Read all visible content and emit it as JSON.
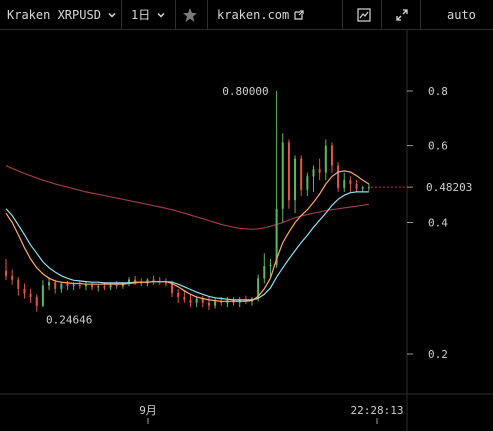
{
  "toolbar": {
    "symbol": "Kraken XRPUSD",
    "interval": "1日",
    "site": "kraken.com",
    "scale_mode": "auto",
    "icons": [
      "chevron-down-icon",
      "chevron-down-icon",
      "star-icon",
      "external-link-icon",
      "chart-type-icon",
      "fullscreen-icon"
    ]
  },
  "colors": {
    "up": "#5fb860",
    "down": "#e0584a",
    "ma_fast": "#ffa863",
    "ma_mid": "#8fe0f0",
    "ma_slow": "#9c3b4a",
    "text": "#cfcfcf",
    "price_line": "#c23a3a"
  },
  "chart_data": {
    "type": "candlestick",
    "y_scale": "log",
    "y_ticks": [
      "0.8",
      "0.6",
      "0.4",
      "0.2"
    ],
    "y_tick_values": [
      0.8,
      0.6,
      0.4,
      0.2
    ],
    "x_ticks": [
      "9月"
    ],
    "time_label": "22:28:13",
    "last_price": "0.48203",
    "high_label": "0.80000",
    "low_label": "0.24646",
    "candles": [
      [
        0.31,
        0.33,
        0.295,
        0.302
      ],
      [
        0.302,
        0.312,
        0.288,
        0.296
      ],
      [
        0.296,
        0.3,
        0.272,
        0.282
      ],
      [
        0.282,
        0.29,
        0.268,
        0.275
      ],
      [
        0.275,
        0.282,
        0.262,
        0.27
      ],
      [
        0.27,
        0.274,
        0.25,
        0.258
      ],
      [
        0.258,
        0.295,
        0.256,
        0.287
      ],
      [
        0.287,
        0.3,
        0.28,
        0.292
      ],
      [
        0.292,
        0.296,
        0.275,
        0.282
      ],
      [
        0.282,
        0.292,
        0.276,
        0.29
      ],
      [
        0.29,
        0.294,
        0.28,
        0.286
      ],
      [
        0.286,
        0.292,
        0.28,
        0.288
      ],
      [
        0.288,
        0.294,
        0.282,
        0.286
      ],
      [
        0.286,
        0.292,
        0.28,
        0.288
      ],
      [
        0.288,
        0.292,
        0.28,
        0.284
      ],
      [
        0.284,
        0.288,
        0.278,
        0.286
      ],
      [
        0.286,
        0.292,
        0.28,
        0.284
      ],
      [
        0.284,
        0.29,
        0.28,
        0.288
      ],
      [
        0.288,
        0.294,
        0.282,
        0.286
      ],
      [
        0.286,
        0.292,
        0.282,
        0.29
      ],
      [
        0.29,
        0.3,
        0.286,
        0.296
      ],
      [
        0.296,
        0.302,
        0.288,
        0.292
      ],
      [
        0.292,
        0.298,
        0.286,
        0.29
      ],
      [
        0.29,
        0.298,
        0.286,
        0.296
      ],
      [
        0.296,
        0.302,
        0.288,
        0.294
      ],
      [
        0.294,
        0.3,
        0.288,
        0.292
      ],
      [
        0.292,
        0.298,
        0.286,
        0.29
      ],
      [
        0.29,
        0.294,
        0.27,
        0.276
      ],
      [
        0.276,
        0.282,
        0.262,
        0.27
      ],
      [
        0.27,
        0.28,
        0.262,
        0.266
      ],
      [
        0.266,
        0.274,
        0.256,
        0.262
      ],
      [
        0.262,
        0.272,
        0.256,
        0.268
      ],
      [
        0.268,
        0.272,
        0.256,
        0.262
      ],
      [
        0.262,
        0.27,
        0.252,
        0.258
      ],
      [
        0.258,
        0.268,
        0.254,
        0.264
      ],
      [
        0.264,
        0.27,
        0.258,
        0.262
      ],
      [
        0.262,
        0.27,
        0.256,
        0.266
      ],
      [
        0.266,
        0.27,
        0.258,
        0.262
      ],
      [
        0.262,
        0.27,
        0.256,
        0.266
      ],
      [
        0.266,
        0.272,
        0.26,
        0.264
      ],
      [
        0.264,
        0.27,
        0.258,
        0.268
      ],
      [
        0.268,
        0.304,
        0.264,
        0.298
      ],
      [
        0.298,
        0.34,
        0.29,
        0.318
      ],
      [
        0.318,
        0.33,
        0.3,
        0.32
      ],
      [
        0.32,
        0.8,
        0.315,
        0.43
      ],
      [
        0.43,
        0.64,
        0.4,
        0.61
      ],
      [
        0.61,
        0.62,
        0.43,
        0.45
      ],
      [
        0.45,
        0.57,
        0.42,
        0.56
      ],
      [
        0.56,
        0.57,
        0.46,
        0.475
      ],
      [
        0.475,
        0.52,
        0.46,
        0.51
      ],
      [
        0.51,
        0.54,
        0.47,
        0.53
      ],
      [
        0.53,
        0.56,
        0.5,
        0.52
      ],
      [
        0.52,
        0.62,
        0.5,
        0.6
      ],
      [
        0.6,
        0.61,
        0.52,
        0.54
      ],
      [
        0.54,
        0.55,
        0.47,
        0.48
      ],
      [
        0.48,
        0.52,
        0.47,
        0.5
      ],
      [
        0.5,
        0.51,
        0.47,
        0.49
      ],
      [
        0.49,
        0.5,
        0.47,
        0.478
      ],
      [
        0.478,
        0.485,
        0.47,
        0.482
      ],
      [
        0.482,
        0.49,
        0.472,
        0.482
      ]
    ],
    "ma_fast": [
      0.42,
      0.4,
      0.375,
      0.35,
      0.33,
      0.315,
      0.305,
      0.298,
      0.294,
      0.292,
      0.291,
      0.29,
      0.29,
      0.289,
      0.289,
      0.289,
      0.289,
      0.289,
      0.289,
      0.289,
      0.29,
      0.291,
      0.292,
      0.292,
      0.293,
      0.293,
      0.293,
      0.29,
      0.285,
      0.279,
      0.274,
      0.27,
      0.268,
      0.266,
      0.265,
      0.264,
      0.264,
      0.264,
      0.264,
      0.264,
      0.265,
      0.271,
      0.282,
      0.298,
      0.33,
      0.36,
      0.38,
      0.4,
      0.415,
      0.428,
      0.445,
      0.465,
      0.49,
      0.51,
      0.522,
      0.525,
      0.522,
      0.512,
      0.5,
      0.49
    ],
    "ma_mid": [
      0.43,
      0.415,
      0.395,
      0.375,
      0.355,
      0.34,
      0.325,
      0.315,
      0.308,
      0.302,
      0.298,
      0.295,
      0.294,
      0.293,
      0.292,
      0.292,
      0.291,
      0.291,
      0.291,
      0.291,
      0.291,
      0.292,
      0.292,
      0.292,
      0.293,
      0.293,
      0.293,
      0.292,
      0.289,
      0.285,
      0.281,
      0.277,
      0.274,
      0.271,
      0.269,
      0.268,
      0.267,
      0.266,
      0.266,
      0.266,
      0.266,
      0.268,
      0.274,
      0.283,
      0.3,
      0.315,
      0.33,
      0.345,
      0.36,
      0.374,
      0.39,
      0.405,
      0.42,
      0.438,
      0.452,
      0.462,
      0.468,
      0.47,
      0.47,
      0.47
    ],
    "ma_slow": [
      0.54,
      0.532,
      0.525,
      0.518,
      0.512,
      0.506,
      0.5,
      0.495,
      0.49,
      0.486,
      0.482,
      0.478,
      0.474,
      0.47,
      0.467,
      0.464,
      0.461,
      0.458,
      0.455,
      0.452,
      0.449,
      0.446,
      0.443,
      0.44,
      0.437,
      0.434,
      0.431,
      0.428,
      0.424,
      0.42,
      0.416,
      0.412,
      0.408,
      0.404,
      0.4,
      0.396,
      0.393,
      0.39,
      0.388,
      0.387,
      0.386,
      0.387,
      0.389,
      0.392,
      0.396,
      0.4,
      0.405,
      0.41,
      0.414,
      0.417,
      0.42,
      0.423,
      0.426,
      0.428,
      0.43,
      0.432,
      0.434,
      0.436,
      0.438,
      0.44
    ]
  }
}
